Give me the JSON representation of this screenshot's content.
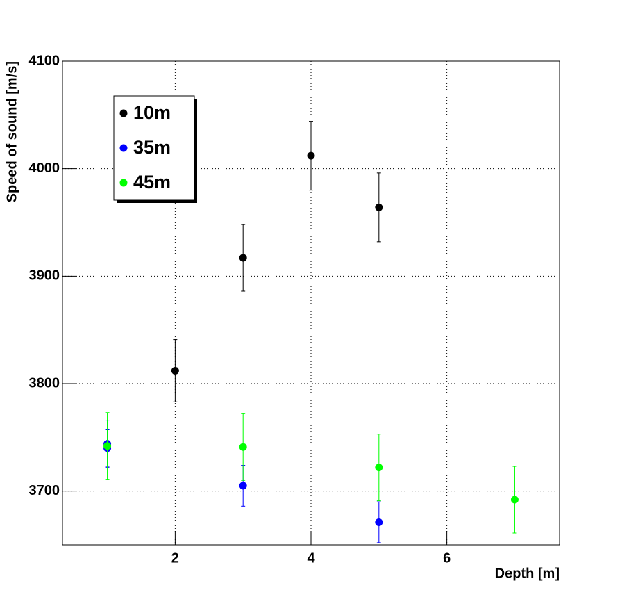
{
  "chart_data": {
    "type": "scatter",
    "xlabel": "Depth [m]",
    "ylabel": "Speed of sound [m/s]",
    "xlim": [
      0.34,
      7.66
    ],
    "ylim": [
      3650,
      4100
    ],
    "xticks": [
      2,
      4,
      6
    ],
    "yticks": [
      3700,
      3800,
      3900,
      4000,
      4100
    ],
    "grid": true,
    "legend": "upper left",
    "series": [
      {
        "name": "10m",
        "color": "#000000",
        "x": [
          2,
          3,
          4,
          5
        ],
        "values": [
          3812,
          3917,
          4012,
          3964
        ],
        "errors": [
          29,
          31,
          32,
          32
        ]
      },
      {
        "name": "35m",
        "color": "#0000ff",
        "x": [
          1,
          1,
          3,
          5
        ],
        "values": [
          3744,
          3740,
          3705,
          3671
        ],
        "errors": [
          22,
          17,
          19,
          19
        ]
      },
      {
        "name": "45m",
        "color": "#00ff00",
        "x": [
          1,
          3,
          5,
          7
        ],
        "values": [
          3742,
          3741,
          3722,
          3692
        ],
        "errors": [
          31,
          31,
          31,
          31
        ]
      }
    ]
  }
}
